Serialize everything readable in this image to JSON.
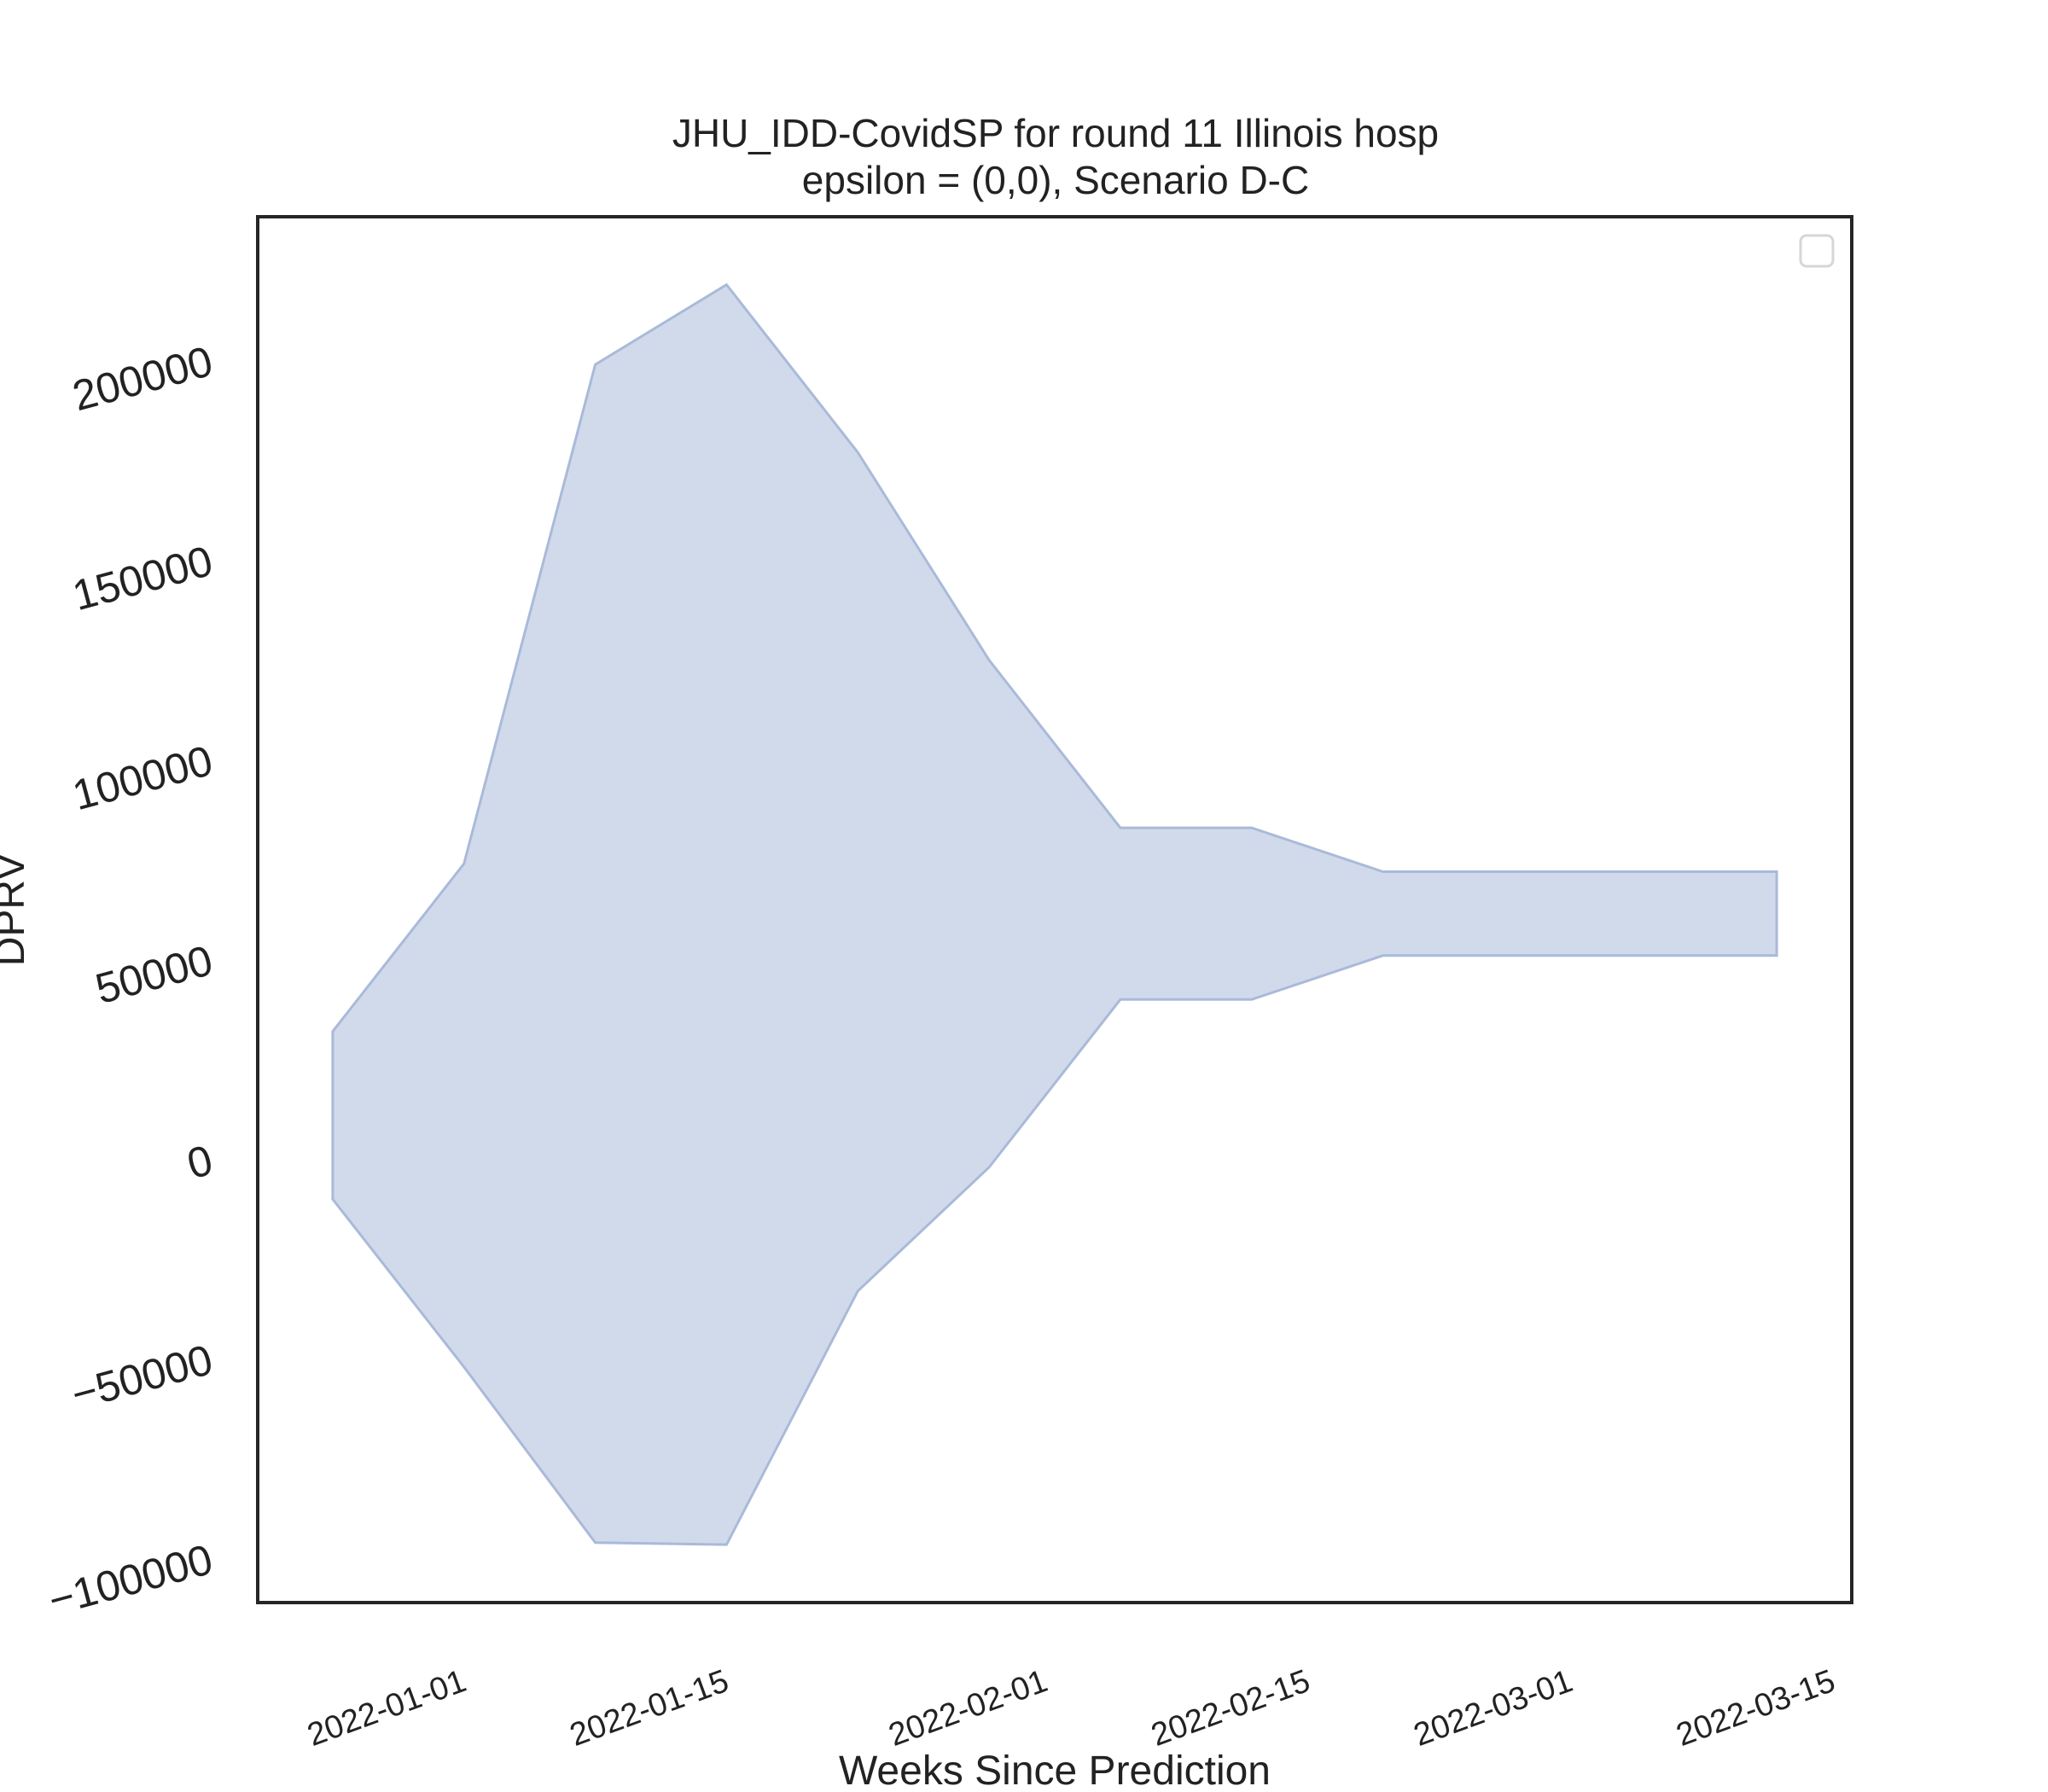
{
  "chart_data": {
    "type": "area",
    "title_line1": "JHU_IDD-CovidSP for round 11 Illinois hosp",
    "title_line2": "epsilon = (0,0), Scenario D-C",
    "xlabel": "Weeks Since Prediction",
    "ylabel": "DPRV",
    "x_ticks": [
      "2022-01-01",
      "2022-01-15",
      "2022-02-01",
      "2022-02-15",
      "2022-03-01",
      "2022-03-15"
    ],
    "y_ticks": [
      -100000,
      -50000,
      0,
      50000,
      100000,
      150000,
      200000
    ],
    "y_tick_labels": [
      "−100000",
      "−50000",
      "0",
      "50000",
      "100000",
      "150000",
      "200000"
    ],
    "ylim": [
      -111000,
      236000
    ],
    "xlim": [
      "2021-12-21",
      "2022-03-16"
    ],
    "fill_color": "#c9d4e8",
    "edge_color": "#a9bad9",
    "series": [
      {
        "name": "band",
        "x": [
          "2021-12-25",
          "2022-01-01",
          "2022-01-08",
          "2022-01-15",
          "2022-01-22",
          "2022-01-29",
          "2022-02-05",
          "2022-02-12",
          "2022-02-19",
          "2022-02-26",
          "2022-03-05",
          "2022-03-12"
        ],
        "lower": [
          -10000,
          -52000,
          -96000,
          -96500,
          -33000,
          -2000,
          40000,
          40000,
          51000,
          51000,
          51000,
          51000
        ],
        "upper": [
          32000,
          74000,
          199000,
          219000,
          177000,
          125000,
          83000,
          83000,
          72000,
          72000,
          72000,
          72000
        ]
      }
    ],
    "legend": "top-right (empty)"
  }
}
